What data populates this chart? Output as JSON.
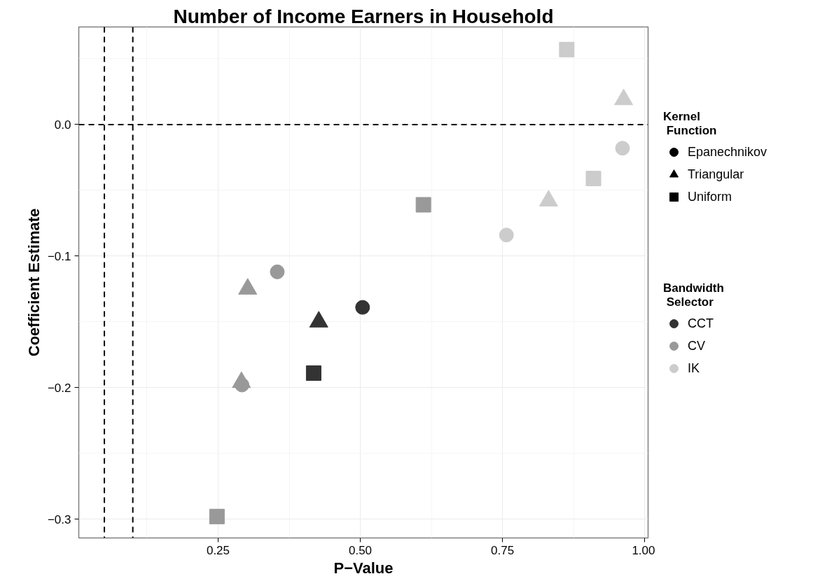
{
  "chart_data": {
    "type": "scatter",
    "title": "Number of Income Earners in Household",
    "xlabel": "P−Value",
    "ylabel": "Coefficient Estimate",
    "legend_title": [
      "Kernel\n Function",
      "Bandwidth\n Selector"
    ],
    "legend": "right",
    "grid": true,
    "xlim": [
      0.005,
      1.006
    ],
    "ylim": [
      -0.3143,
      0.0742
    ],
    "xticks": [
      {
        "value": 0.25,
        "label": "0.25"
      },
      {
        "value": 0.5,
        "label": "0.50"
      },
      {
        "value": 0.75,
        "label": "0.75"
      },
      {
        "value": 1.0,
        "label": "1.00"
      }
    ],
    "yticks": [
      {
        "value": -0.3,
        "label": "−0.3"
      },
      {
        "value": -0.2,
        "label": "−0.2"
      },
      {
        "value": -0.1,
        "label": "−0.1"
      },
      {
        "value": 0.0,
        "label": "0.0"
      }
    ],
    "ref_lines": [
      {
        "axis": "x",
        "value": 0.05,
        "line_style": "dashed",
        "color": "#000000"
      },
      {
        "axis": "x",
        "value": 0.1,
        "line_style": "dashed",
        "color": "#000000"
      },
      {
        "axis": "y",
        "value": 0.0,
        "line_style": "dashed",
        "color": "#000000"
      }
    ],
    "series": [
      {
        "name": "Epanechnikov",
        "marker": "circle",
        "color": "#000000"
      },
      {
        "name": "Triangular",
        "marker": "triangle",
        "color": "#000000"
      },
      {
        "name": "Uniform",
        "marker": "square",
        "color": "#000000"
      },
      {
        "name": "CCT",
        "marker": "circle",
        "color": "#333333"
      },
      {
        "name": "CV",
        "marker": "circle",
        "color": "#999999"
      },
      {
        "name": "IK",
        "marker": "circle",
        "color": "#cccccc"
      },
      {
        "marker": "triangle",
        "color": "#333333",
        "x": [
          0.427
        ],
        "values": [
          -0.15
        ]
      },
      {
        "marker": "triangle",
        "color": "#999999",
        "x": [
          0.302,
          0.291
        ],
        "values": [
          -0.125,
          -0.196
        ]
      },
      {
        "marker": "triangle",
        "color": "#cccccc",
        "x": [
          0.963,
          0.831
        ],
        "values": [
          0.019,
          -0.058
        ]
      },
      {
        "marker": "circle",
        "color": "#333333",
        "x": [
          0.504
        ],
        "values": [
          -0.139
        ]
      },
      {
        "marker": "circle",
        "color": "#999999",
        "x": [
          0.354,
          0.292
        ],
        "values": [
          -0.112,
          -0.198
        ]
      },
      {
        "marker": "circle",
        "color": "#cccccc",
        "x": [
          0.961,
          0.757
        ],
        "values": [
          -0.018,
          -0.084
        ]
      },
      {
        "marker": "square",
        "color": "#333333",
        "x": [
          0.418
        ],
        "values": [
          -0.189
        ]
      },
      {
        "marker": "square",
        "color": "#999999",
        "x": [
          0.611,
          0.248
        ],
        "values": [
          -0.061,
          -0.298
        ]
      },
      {
        "marker": "square",
        "color": "#cccccc",
        "x": [
          0.863,
          0.91
        ],
        "values": [
          0.057,
          -0.041
        ]
      }
    ]
  }
}
